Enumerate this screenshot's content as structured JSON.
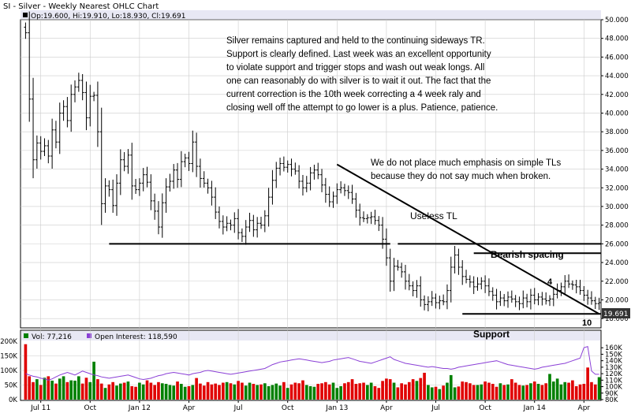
{
  "title": "SI - Silver - Weekly Nearest OHLC Chart",
  "price_legend": "Op:19.600, Hi:19.910, Lo:18.930, Cl:19.691",
  "last_price_label": "19.691",
  "vol_legend": "Vol: 77,216",
  "oi_legend": "Open Interest: 118,590",
  "colors": {
    "bg": "#ffffff",
    "title_bar": "#e8e8f4",
    "grid": "#cccccc",
    "price": "#000000",
    "up_bar": "#008000",
    "down_bar": "#e00000",
    "open_interest": "#8a3fd6",
    "last_label_bg": "#333333"
  },
  "annotations": {
    "commentary": [
      "Silver remains captured and held to the continuing sideways TR.",
      "Support is clearly defined.  Last week was an excellent opportunity",
      "to violate support and trigger stops and wash out weak longs.  All",
      "one can reasonably do with silver is to wait it out.  The fact that the",
      "current correction is the 10th week correcting a 4 week raly and",
      "closing well off the attempt to go lower is a plus.  Patience, patience."
    ],
    "tl_note": [
      "We do not place much emphasis on simple TLs",
      "because they do not say much when broken."
    ],
    "useless_tl": "Useless TL",
    "bearish_spacing": "Bearish spacing",
    "support": "Support",
    "label_4": "4",
    "label_10": "10"
  },
  "chart_data": [
    {
      "type": "ohlc",
      "name": "price",
      "y_ticks": [
        18,
        20,
        22,
        24,
        26,
        28,
        30,
        32,
        34,
        36,
        38,
        40,
        42,
        44,
        46,
        48,
        50
      ],
      "y_tick_labels": [
        "18.000",
        "20.000",
        "22.000",
        "24.000",
        "26.000",
        "28.000",
        "30.000",
        "32.000",
        "34.000",
        "36.000",
        "38.000",
        "40.000",
        "42.000",
        "44.000",
        "46.000",
        "48.000",
        "50.000"
      ],
      "ylim": [
        17,
        50
      ],
      "x_tick_labels": [
        "Jul 11",
        "Oct",
        "Jan 12",
        "Apr",
        "Jul",
        "Oct",
        "Jan 13",
        "Apr",
        "Jul",
        "Oct",
        "Jan 14",
        "Apr"
      ],
      "x_tick_weeks": [
        4,
        17,
        30,
        43,
        56,
        69,
        82,
        95,
        108,
        121,
        134,
        147
      ],
      "weeks": 152,
      "closes": [
        48.6,
        41.5,
        35.0,
        36.8,
        35.9,
        36.5,
        35.4,
        38.2,
        36.9,
        40.0,
        40.7,
        39.2,
        42.0,
        42.8,
        43.5,
        42.2,
        39.5,
        41.8,
        41.9,
        38.0,
        30.3,
        32.2,
        31.8,
        30.1,
        32.5,
        35.0,
        34.3,
        35.5,
        32.2,
        31.8,
        32.5,
        33.4,
        32.6,
        30.6,
        29.5,
        27.8,
        30.4,
        32.1,
        32.7,
        33.9,
        32.9,
        34.8,
        35.2,
        34.6,
        36.9,
        34.3,
        33.0,
        32.5,
        32.0,
        31.0,
        29.4,
        28.4,
        27.8,
        28.2,
        28.0,
        28.7,
        27.2,
        26.8,
        27.8,
        28.5,
        27.5,
        28.2,
        28.0,
        29.0,
        31.0,
        32.8,
        34.1,
        34.6,
        34.2,
        34.5,
        34.0,
        33.8,
        32.7,
        32.0,
        32.5,
        33.6,
        33.9,
        33.4,
        32.3,
        31.3,
        30.5,
        31.1,
        31.8,
        32.0,
        31.7,
        31.5,
        30.8,
        29.6,
        28.8,
        28.7,
        28.8,
        28.9,
        28.5,
        28.0,
        26.5,
        24.5,
        22.0,
        23.6,
        23.5,
        23.0,
        22.0,
        21.5,
        21.0,
        21.5,
        20.0,
        19.5,
        19.8,
        20.2,
        19.7,
        19.9,
        19.8,
        21.0,
        23.5,
        24.8,
        23.5,
        22.5,
        22.2,
        21.9,
        21.4,
        21.7,
        22.0,
        21.5,
        20.9,
        20.5,
        19.8,
        20.2,
        19.9,
        20.3,
        20.1,
        19.8,
        19.6,
        20.2,
        19.8,
        20.5,
        20.0,
        20.3,
        20.1,
        19.9,
        20.1,
        20.6,
        21.0,
        21.4,
        22.0,
        21.7,
        21.6,
        21.4,
        21.0,
        20.5,
        20.2,
        19.9,
        19.6,
        19.7
      ],
      "trend_lines": [
        {
          "label": "Useless TL",
          "from": [
            82,
            34.5
          ],
          "to": [
            151,
            18.5
          ]
        },
        {
          "label": "Support",
          "from": [
            115,
            18.5
          ],
          "to": [
            152,
            18.5
          ]
        },
        {
          "label": "",
          "from": [
            22,
            26.0
          ],
          "to": [
            96,
            26.0
          ]
        },
        {
          "label": "",
          "from": [
            98,
            26.0
          ],
          "to": [
            152,
            26.0
          ]
        },
        {
          "label": "Bearish spacing",
          "from": [
            118,
            25.0
          ],
          "to": [
            152,
            25.0
          ]
        }
      ]
    },
    {
      "type": "bar",
      "name": "Vol",
      "y_ticks": [
        0,
        50,
        100,
        150,
        200
      ],
      "y_tick_labels": [
        "0K",
        "50K",
        "100K",
        "150K",
        "200K"
      ],
      "ylim": [
        0,
        200
      ],
      "values": [
        190,
        80,
        60,
        70,
        50,
        75,
        80,
        65,
        55,
        72,
        80,
        60,
        66,
        65,
        80,
        55,
        75,
        60,
        130,
        70,
        55,
        40,
        52,
        60,
        48,
        55,
        58,
        62,
        46,
        44,
        58,
        52,
        66,
        58,
        50,
        60,
        56,
        54,
        50,
        48,
        62,
        54,
        44,
        46,
        50,
        74,
        55,
        48,
        60,
        52,
        55,
        50,
        58,
        60,
        56,
        52,
        64,
        58,
        48,
        58,
        54,
        50,
        52,
        56,
        46,
        50,
        55,
        48,
        60,
        40,
        52,
        58,
        56,
        66,
        50,
        46,
        44,
        54,
        56,
        60,
        52,
        58,
        40,
        46,
        56,
        60,
        70,
        54,
        56,
        58,
        50,
        58,
        46,
        40,
        64,
        72,
        70,
        58,
        42,
        56,
        52,
        60,
        70,
        64,
        74,
        92,
        50,
        42,
        44,
        36,
        48,
        58,
        84,
        42,
        45,
        62,
        60,
        56,
        50,
        50,
        52,
        62,
        58,
        54,
        44,
        56,
        50,
        52,
        70,
        58,
        50,
        48,
        50,
        56,
        62,
        54,
        50,
        56,
        88,
        62,
        72,
        52,
        60,
        58,
        66,
        46,
        52,
        54,
        110,
        60,
        52,
        77
      ]
    },
    {
      "type": "line",
      "name": "Open Interest",
      "y_ticks": [
        80,
        90,
        100,
        110,
        120,
        130,
        140,
        150,
        160
      ],
      "y_tick_labels": [
        "80K",
        "90K",
        "100K",
        "110K",
        "120K",
        "130K",
        "140K",
        "150K",
        "160K"
      ],
      "ylim": [
        80,
        170
      ],
      "values": [
        120,
        118,
        116,
        115,
        113,
        112,
        110,
        112,
        115,
        118,
        120,
        122,
        120,
        118,
        121,
        124,
        122,
        120,
        118,
        117,
        115,
        114,
        113,
        114,
        115,
        116,
        117,
        118,
        116,
        114,
        112,
        111,
        112,
        113,
        115,
        117,
        118,
        120,
        121,
        122,
        121,
        120,
        119,
        118,
        120,
        121,
        122,
        124,
        125,
        124,
        123,
        122,
        121,
        120,
        119,
        120,
        121,
        122,
        123,
        124,
        125,
        126,
        127,
        128,
        131,
        134,
        136,
        138,
        139,
        140,
        141,
        142,
        143,
        142,
        141,
        140,
        139,
        138,
        137,
        138,
        139,
        141,
        142,
        143,
        144,
        145,
        143,
        141,
        139,
        138,
        137,
        136,
        138,
        140,
        142,
        144,
        146,
        142,
        140,
        138,
        136,
        135,
        134,
        133,
        132,
        131,
        130,
        131,
        130,
        129,
        128,
        128,
        127,
        128,
        130,
        131,
        132,
        133,
        134,
        135,
        136,
        137,
        138,
        139,
        140,
        138,
        136,
        134,
        133,
        132,
        131,
        130,
        129,
        128,
        127,
        128,
        130,
        131,
        132,
        133,
        134,
        135,
        136,
        138,
        140,
        142,
        144,
        160,
        162,
        124,
        119,
        119
      ]
    }
  ]
}
